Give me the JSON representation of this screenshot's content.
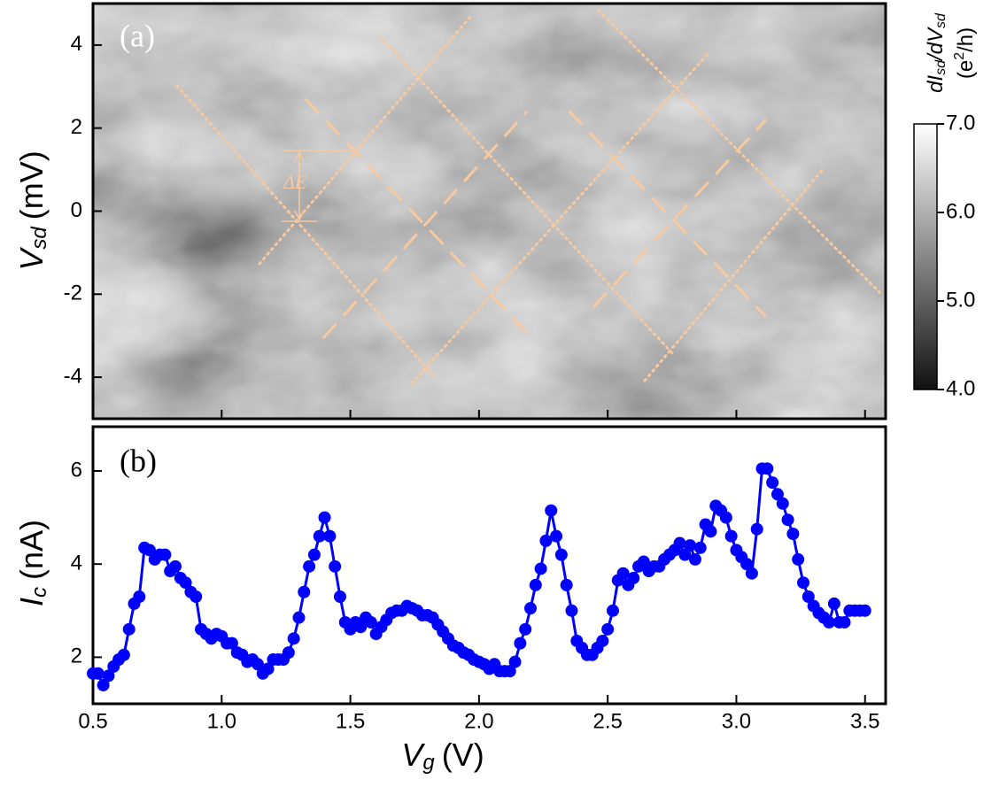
{
  "chart_data": [
    {
      "type": "heatmap",
      "panel_label": "(a)",
      "ylabel": {
        "main": "V",
        "sub": "sd",
        "unit": "(mV)"
      },
      "ylim": [
        -5,
        5
      ],
      "yticks": [
        -4,
        -2,
        0,
        2,
        4
      ],
      "xlim": [
        0.5,
        3.58
      ],
      "annotation": "ΔE",
      "colorbar": {
        "label": {
          "d1": "dI",
          "s1": "sd",
          "slash": "/dV",
          "s2": "sd",
          "unit": "(e",
          "sup": "2",
          "unit_end": "/h)"
        },
        "clim": [
          4,
          7
        ],
        "colormap": [
          "#111111",
          "#ffffff"
        ],
        "ticks": [
          {
            "value": 7,
            "label": "7.0"
          },
          {
            "value": 6,
            "label": "6.0"
          },
          {
            "value": 5,
            "label": "5.0"
          },
          {
            "value": 4,
            "label": "4.0"
          }
        ]
      }
    },
    {
      "type": "line",
      "panel_label": "(b)",
      "ylabel": {
        "main": "I",
        "sub": "c",
        "unit": "(nA)"
      },
      "xlabel": {
        "main": "V",
        "sub": "g",
        "unit": "(V)"
      },
      "xlim": [
        0.5,
        3.58
      ],
      "ylim": [
        1,
        6.95
      ],
      "xticks": [
        {
          "value": 0.5,
          "label": "0.5"
        },
        {
          "value": 1,
          "label": "1.0"
        },
        {
          "value": 1.5,
          "label": "1.5"
        },
        {
          "value": 2,
          "label": "2.0"
        },
        {
          "value": 2.5,
          "label": "2.5"
        },
        {
          "value": 3,
          "label": "3.0"
        },
        {
          "value": 3.5,
          "label": "3.5"
        }
      ],
      "yticks": [
        2,
        4,
        6
      ],
      "color": "#0000ff",
      "x": [
        0.5,
        0.52,
        0.54,
        0.56,
        0.58,
        0.6,
        0.62,
        0.64,
        0.66,
        0.68,
        0.7,
        0.72,
        0.74,
        0.76,
        0.78,
        0.8,
        0.82,
        0.84,
        0.86,
        0.88,
        0.9,
        0.92,
        0.94,
        0.96,
        0.98,
        1.0,
        1.02,
        1.04,
        1.06,
        1.08,
        1.1,
        1.12,
        1.14,
        1.16,
        1.18,
        1.2,
        1.22,
        1.24,
        1.26,
        1.28,
        1.3,
        1.32,
        1.34,
        1.36,
        1.38,
        1.4,
        1.42,
        1.44,
        1.46,
        1.48,
        1.5,
        1.52,
        1.54,
        1.56,
        1.58,
        1.6,
        1.62,
        1.64,
        1.66,
        1.68,
        1.7,
        1.72,
        1.74,
        1.76,
        1.78,
        1.8,
        1.82,
        1.84,
        1.86,
        1.88,
        1.9,
        1.92,
        1.94,
        1.96,
        1.98,
        2.0,
        2.02,
        2.04,
        2.06,
        2.08,
        2.1,
        2.12,
        2.14,
        2.16,
        2.18,
        2.2,
        2.22,
        2.24,
        2.26,
        2.28,
        2.3,
        2.32,
        2.34,
        2.36,
        2.38,
        2.4,
        2.42,
        2.44,
        2.46,
        2.48,
        2.5,
        2.52,
        2.54,
        2.56,
        2.58,
        2.6,
        2.62,
        2.64,
        2.66,
        2.68,
        2.7,
        2.72,
        2.74,
        2.76,
        2.78,
        2.8,
        2.82,
        2.84,
        2.86,
        2.88,
        2.9,
        2.92,
        2.94,
        2.96,
        2.98,
        3.0,
        3.02,
        3.04,
        3.06,
        3.08,
        3.1,
        3.12,
        3.14,
        3.16,
        3.18,
        3.2,
        3.22,
        3.24,
        3.26,
        3.28,
        3.3,
        3.32,
        3.34,
        3.36,
        3.38,
        3.4,
        3.42,
        3.44,
        3.46,
        3.48,
        3.5
      ],
      "values": [
        1.65,
        1.65,
        1.4,
        1.6,
        1.8,
        1.95,
        2.05,
        2.6,
        3.15,
        3.3,
        4.35,
        4.3,
        4.1,
        4.2,
        4.2,
        3.85,
        3.95,
        3.7,
        3.6,
        3.4,
        3.3,
        2.6,
        2.5,
        2.4,
        2.5,
        2.45,
        2.3,
        2.3,
        2.1,
        2.05,
        1.9,
        1.95,
        1.85,
        1.65,
        1.75,
        1.95,
        1.95,
        1.95,
        2.1,
        2.4,
        2.85,
        3.4,
        3.95,
        4.2,
        4.6,
        5.0,
        4.6,
        3.95,
        3.3,
        2.75,
        2.6,
        2.75,
        2.65,
        2.85,
        2.75,
        2.5,
        2.65,
        2.8,
        2.95,
        3.0,
        3.0,
        3.1,
        3.05,
        3.0,
        2.9,
        2.9,
        2.85,
        2.7,
        2.55,
        2.4,
        2.25,
        2.2,
        2.1,
        2.05,
        1.95,
        1.9,
        1.85,
        1.75,
        1.85,
        1.7,
        1.7,
        1.7,
        1.9,
        2.3,
        2.6,
        3.05,
        3.55,
        3.9,
        4.5,
        5.15,
        4.6,
        4.2,
        3.55,
        3.0,
        2.35,
        2.2,
        2.05,
        2.05,
        2.2,
        2.35,
        2.6,
        3.0,
        3.65,
        3.8,
        3.55,
        3.7,
        3.95,
        4.05,
        3.85,
        3.95,
        3.95,
        4.1,
        4.2,
        4.3,
        4.45,
        4.2,
        4.4,
        4.1,
        4.35,
        4.85,
        4.7,
        5.25,
        5.15,
        5.0,
        4.6,
        4.3,
        4.15,
        4.0,
        3.8,
        4.75,
        6.05,
        6.05,
        5.75,
        5.5,
        5.3,
        4.95,
        4.65,
        4.1,
        3.6,
        3.3,
        3.1,
        2.95,
        2.85,
        2.75,
        3.15,
        2.75,
        2.75,
        3.0,
        3.0,
        3.0,
        3.0
      ]
    }
  ]
}
